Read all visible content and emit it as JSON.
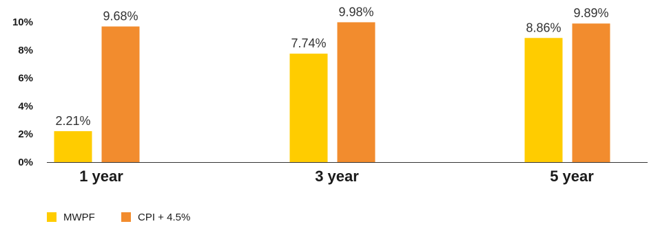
{
  "chart_data": {
    "type": "bar",
    "categories": [
      "1 year",
      "3 year",
      "5 year"
    ],
    "series": [
      {
        "name": "MWPF",
        "color": "#FFCC00",
        "values": [
          2.21,
          7.74,
          8.86
        ],
        "labels": [
          "2.21%",
          "7.74%",
          "8.86%"
        ]
      },
      {
        "name": "CPI + 4.5%",
        "color": "#F28C2E",
        "values": [
          9.68,
          9.98,
          9.89
        ],
        "labels": [
          "9.68%",
          "9.98%",
          "9.89%"
        ]
      }
    ],
    "ylim": [
      0,
      10
    ],
    "yticks": [
      0,
      2,
      4,
      6,
      8,
      10
    ],
    "ytick_labels": [
      "0%",
      "2%",
      "4%",
      "6%",
      "8%",
      "10%"
    ],
    "legend": "bottom-left",
    "grid": false
  }
}
